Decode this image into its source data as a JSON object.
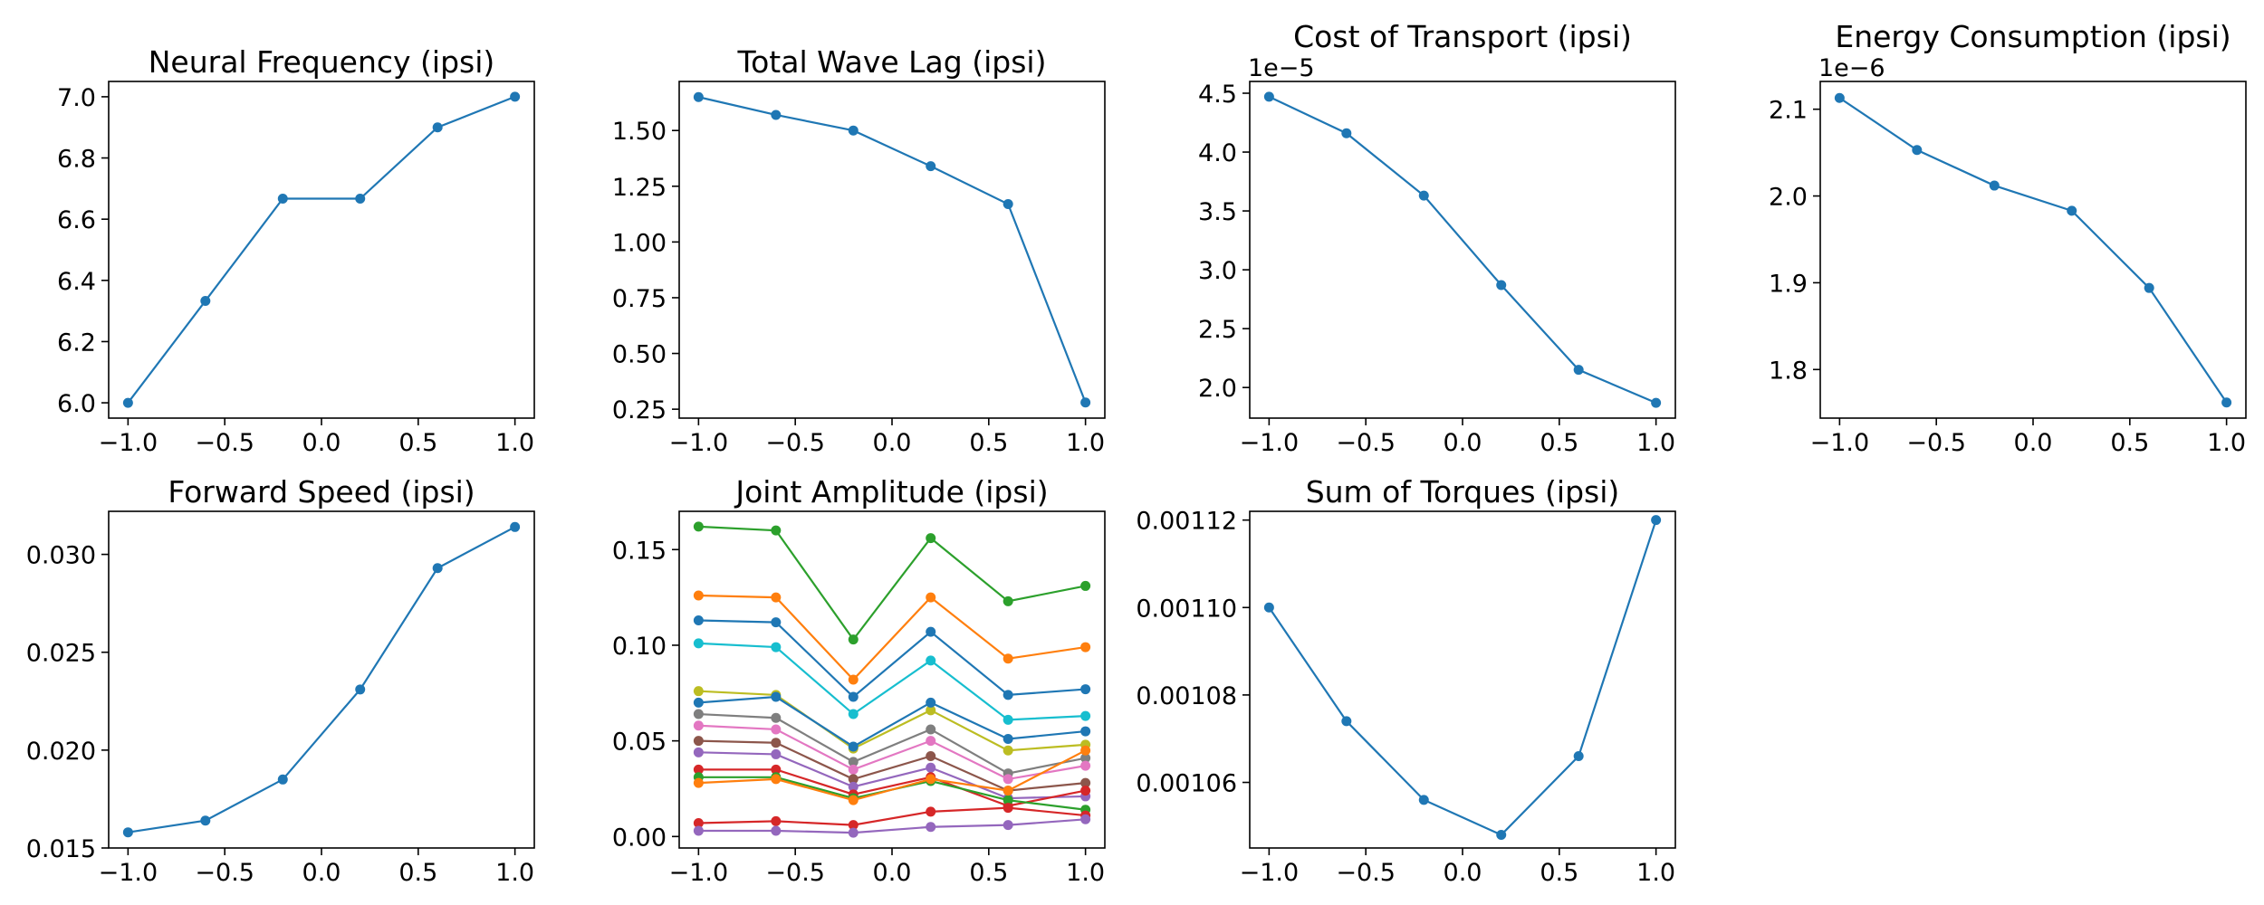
{
  "chart_data": [
    {
      "type": "line",
      "title": "Neural Frequency (ipsi)",
      "x": [
        -1.0,
        -0.6,
        -0.2,
        0.2,
        0.6,
        1.0
      ],
      "x_ticks": [
        "−1.0",
        "−0.5",
        "0.0",
        "0.5",
        "1.0"
      ],
      "y_ticks": [
        "6.0",
        "6.2",
        "6.4",
        "6.6",
        "6.8",
        "7.0"
      ],
      "xlim": [
        -1.1,
        1.1
      ],
      "ylim": [
        5.95,
        7.05
      ],
      "scale_label": "",
      "series": [
        {
          "color": "#1f77b4",
          "values": [
            6.0,
            6.333,
            6.667,
            6.667,
            6.9,
            7.0
          ]
        }
      ]
    },
    {
      "type": "line",
      "title": "Total Wave Lag (ipsi)",
      "x": [
        -1.0,
        -0.6,
        -0.2,
        0.2,
        0.6,
        1.0
      ],
      "x_ticks": [
        "−1.0",
        "−0.5",
        "0.0",
        "0.5",
        "1.0"
      ],
      "y_ticks": [
        "0.25",
        "0.50",
        "0.75",
        "1.00",
        "1.25",
        "1.50"
      ],
      "xlim": [
        -1.1,
        1.1
      ],
      "ylim": [
        0.21,
        1.72
      ],
      "scale_label": "",
      "series": [
        {
          "color": "#1f77b4",
          "values": [
            1.65,
            1.57,
            1.5,
            1.34,
            1.17,
            0.28
          ]
        }
      ]
    },
    {
      "type": "line",
      "title": "Cost of Transport (ipsi)",
      "x": [
        -1.0,
        -0.6,
        -0.2,
        0.2,
        0.6,
        1.0
      ],
      "x_ticks": [
        "−1.0",
        "−0.5",
        "0.0",
        "0.5",
        "1.0"
      ],
      "y_ticks": [
        "2.0",
        "2.5",
        "3.0",
        "3.5",
        "4.0",
        "4.5"
      ],
      "xlim": [
        -1.1,
        1.1
      ],
      "ylim": [
        1.74,
        4.6
      ],
      "scale_label": "1e−5",
      "series": [
        {
          "color": "#1f77b4",
          "values": [
            4.47,
            4.16,
            3.63,
            2.87,
            2.15,
            1.87
          ]
        }
      ]
    },
    {
      "type": "line",
      "title": "Energy Consumption (ipsi)",
      "x": [
        -1.0,
        -0.6,
        -0.2,
        0.2,
        0.6,
        1.0
      ],
      "x_ticks": [
        "−1.0",
        "−0.5",
        "0.0",
        "0.5",
        "1.0"
      ],
      "y_ticks": [
        "1.8",
        "1.9",
        "2.0",
        "2.1"
      ],
      "xlim": [
        -1.1,
        1.1
      ],
      "ylim": [
        1.744,
        2.132
      ],
      "scale_label": "1e−6",
      "series": [
        {
          "color": "#1f77b4",
          "values": [
            2.113,
            2.053,
            2.012,
            1.983,
            1.894,
            1.762
          ]
        }
      ]
    },
    {
      "type": "line",
      "title": "Forward Speed (ipsi)",
      "x": [
        -1.0,
        -0.6,
        -0.2,
        0.2,
        0.6,
        1.0
      ],
      "x_ticks": [
        "−1.0",
        "−0.5",
        "0.0",
        "0.5",
        "1.0"
      ],
      "y_ticks": [
        "0.015",
        "0.020",
        "0.025",
        "0.030"
      ],
      "xlim": [
        -1.1,
        1.1
      ],
      "ylim": [
        0.015,
        0.0322
      ],
      "scale_label": "",
      "series": [
        {
          "color": "#1f77b4",
          "values": [
            0.0158,
            0.0164,
            0.0185,
            0.0231,
            0.0293,
            0.0314
          ]
        }
      ]
    },
    {
      "type": "line",
      "title": "Joint Amplitude (ipsi)",
      "x": [
        -1.0,
        -0.6,
        -0.2,
        0.2,
        0.6,
        1.0
      ],
      "x_ticks": [
        "−1.0",
        "−0.5",
        "0.0",
        "0.5",
        "1.0"
      ],
      "y_ticks": [
        "0.00",
        "0.05",
        "0.10",
        "0.15"
      ],
      "xlim": [
        -1.1,
        1.1
      ],
      "ylim": [
        -0.006,
        0.17
      ],
      "scale_label": "",
      "series": [
        {
          "color": "#2ca02c",
          "values": [
            0.162,
            0.16,
            0.103,
            0.156,
            0.123,
            0.131
          ]
        },
        {
          "color": "#ff7f0e",
          "values": [
            0.126,
            0.125,
            0.082,
            0.125,
            0.093,
            0.099
          ]
        },
        {
          "color": "#1f77b4",
          "values": [
            0.113,
            0.112,
            0.073,
            0.107,
            0.074,
            0.077
          ]
        },
        {
          "color": "#17becf",
          "values": [
            0.101,
            0.099,
            0.064,
            0.092,
            0.061,
            0.063
          ]
        },
        {
          "color": "#bcbd22",
          "values": [
            0.076,
            0.074,
            0.046,
            0.066,
            0.045,
            0.048
          ]
        },
        {
          "color": "#1f77b4",
          "values": [
            0.07,
            0.073,
            0.047,
            0.07,
            0.051,
            0.055
          ]
        },
        {
          "color": "#7f7f7f",
          "values": [
            0.064,
            0.062,
            0.039,
            0.056,
            0.033,
            0.041
          ]
        },
        {
          "color": "#e377c2",
          "values": [
            0.058,
            0.056,
            0.035,
            0.05,
            0.03,
            0.037
          ]
        },
        {
          "color": "#8c564b",
          "values": [
            0.05,
            0.049,
            0.03,
            0.042,
            0.024,
            0.028
          ]
        },
        {
          "color": "#9467bd",
          "values": [
            0.044,
            0.043,
            0.026,
            0.036,
            0.02,
            0.021
          ]
        },
        {
          "color": "#d62728",
          "values": [
            0.035,
            0.035,
            0.022,
            0.031,
            0.016,
            0.024
          ]
        },
        {
          "color": "#2ca02c",
          "values": [
            0.031,
            0.031,
            0.02,
            0.029,
            0.019,
            0.014
          ]
        },
        {
          "color": "#ff7f0e",
          "values": [
            0.028,
            0.03,
            0.019,
            0.03,
            0.024,
            0.045
          ]
        },
        {
          "color": "#d62728",
          "values": [
            0.007,
            0.008,
            0.006,
            0.013,
            0.015,
            0.011
          ]
        },
        {
          "color": "#9467bd",
          "values": [
            0.003,
            0.003,
            0.002,
            0.005,
            0.006,
            0.009
          ]
        }
      ]
    },
    {
      "type": "line",
      "title": "Sum of Torques (ipsi)",
      "x": [
        -1.0,
        -0.6,
        -0.2,
        0.2,
        0.6,
        1.0
      ],
      "x_ticks": [
        "−1.0",
        "−0.5",
        "0.0",
        "0.5",
        "1.0"
      ],
      "y_ticks": [
        "0.00106",
        "0.00108",
        "0.00110",
        "0.00112"
      ],
      "xlim": [
        -1.1,
        1.1
      ],
      "ylim": [
        0.001045,
        0.001122
      ],
      "scale_label": "",
      "series": [
        {
          "color": "#1f77b4",
          "values": [
            0.0011,
            0.001074,
            0.001056,
            0.001048,
            0.001066,
            0.00112
          ]
        }
      ]
    }
  ]
}
